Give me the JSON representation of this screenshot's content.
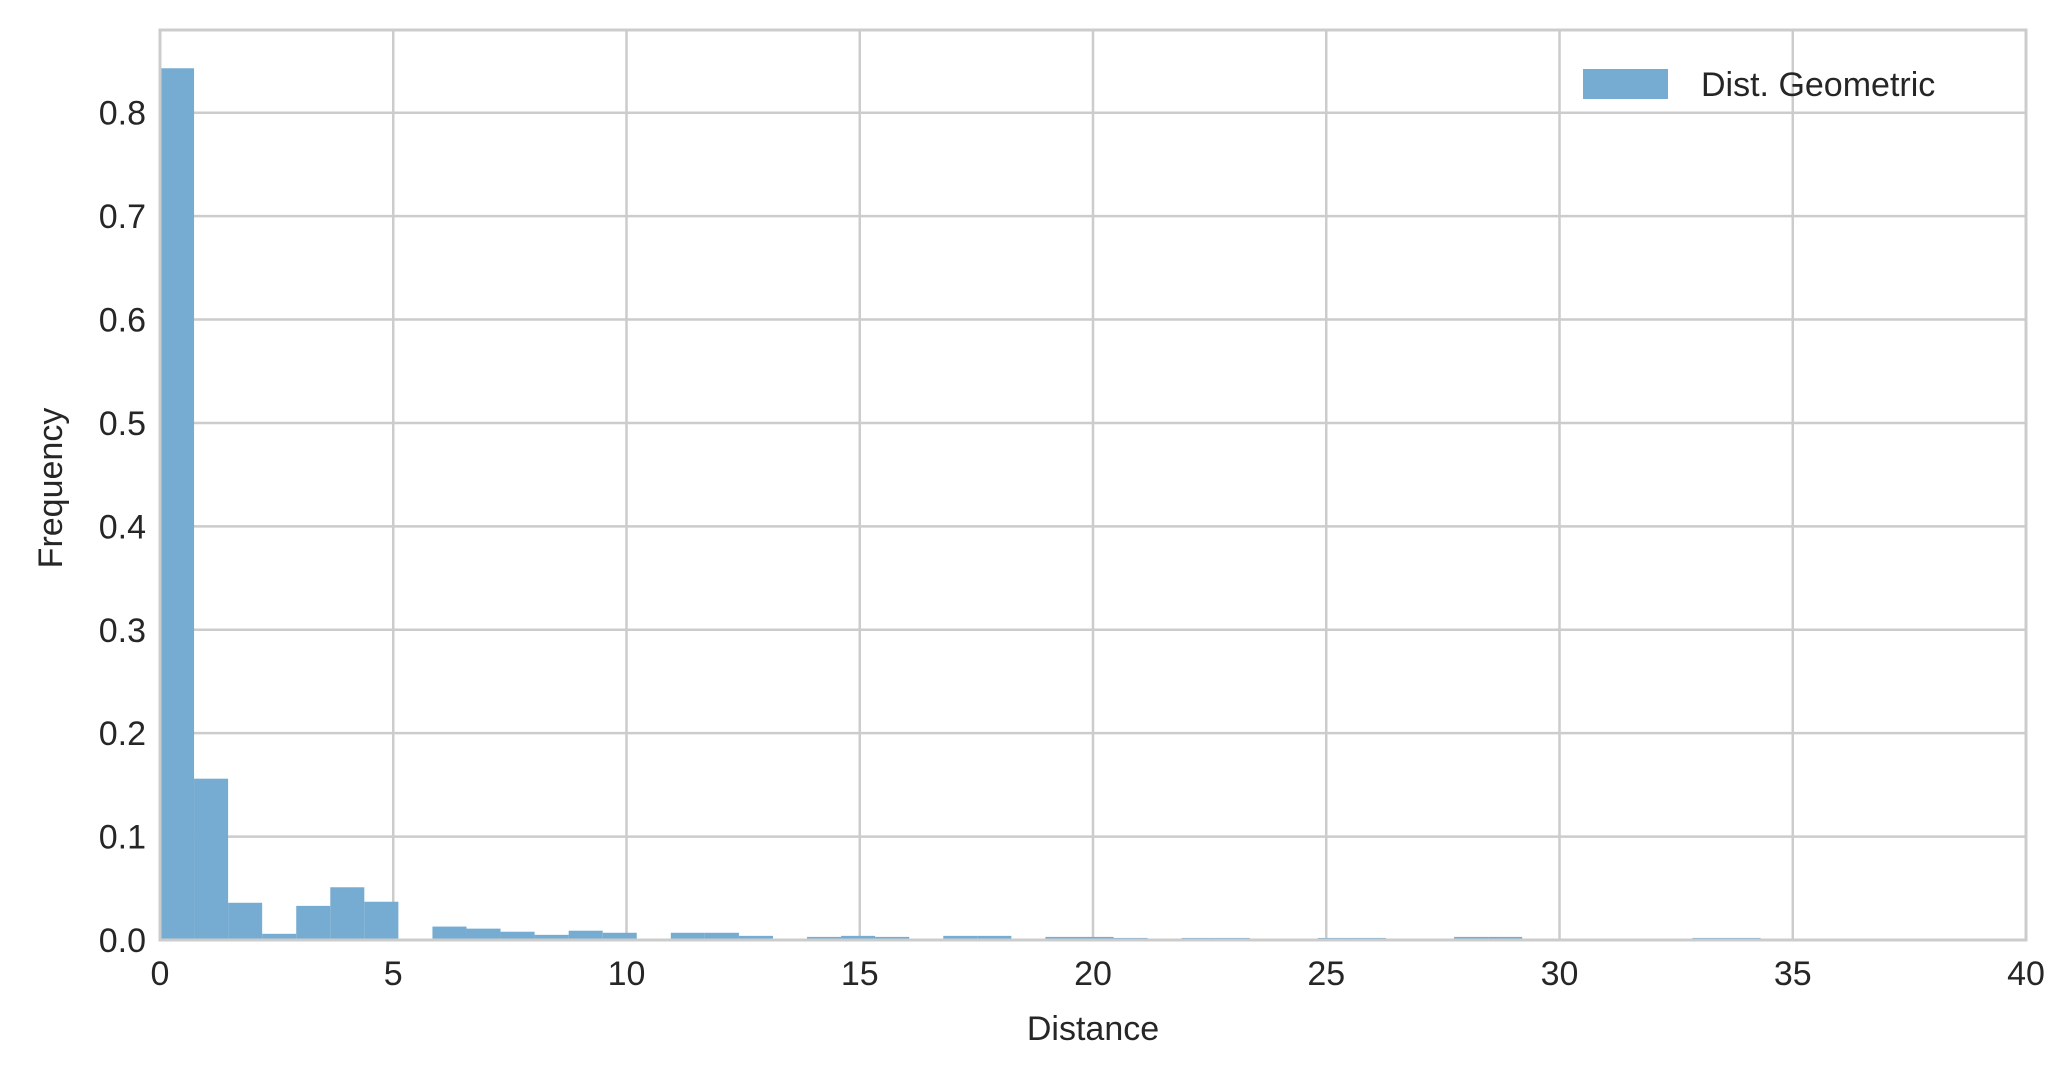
{
  "chart_data": {
    "type": "bar",
    "subtype": "histogram",
    "title": "",
    "xlabel": "Distance",
    "ylabel": "Frequency",
    "xlim": [
      0,
      40
    ],
    "ylim": [
      0,
      0.88
    ],
    "xticks": [
      0,
      5,
      10,
      15,
      20,
      25,
      30,
      35,
      40
    ],
    "yticks": [
      0.0,
      0.1,
      0.2,
      0.3,
      0.4,
      0.5,
      0.6,
      0.7,
      0.8
    ],
    "xtick_labels": [
      "0",
      "5",
      "10",
      "15",
      "20",
      "25",
      "30",
      "35",
      "40"
    ],
    "ytick_labels": [
      "0.0",
      "0.1",
      "0.2",
      "0.3",
      "0.4",
      "0.5",
      "0.6",
      "0.7",
      "0.8"
    ],
    "grid": true,
    "legend_position": "top-right",
    "series": [
      {
        "name": "Dist. Geometric",
        "color": "#77acd2",
        "bins": [
          {
            "x0": 0.0,
            "x1": 0.73,
            "value": 0.843
          },
          {
            "x0": 0.73,
            "x1": 1.46,
            "value": 0.156
          },
          {
            "x0": 1.46,
            "x1": 2.19,
            "value": 0.036
          },
          {
            "x0": 2.19,
            "x1": 2.92,
            "value": 0.006
          },
          {
            "x0": 2.92,
            "x1": 3.65,
            "value": 0.033
          },
          {
            "x0": 3.65,
            "x1": 4.38,
            "value": 0.051
          },
          {
            "x0": 4.38,
            "x1": 5.11,
            "value": 0.037
          },
          {
            "x0": 5.84,
            "x1": 6.57,
            "value": 0.013
          },
          {
            "x0": 6.57,
            "x1": 7.3,
            "value": 0.011
          },
          {
            "x0": 7.3,
            "x1": 8.03,
            "value": 0.008
          },
          {
            "x0": 8.03,
            "x1": 8.76,
            "value": 0.005
          },
          {
            "x0": 8.76,
            "x1": 9.49,
            "value": 0.009
          },
          {
            "x0": 9.49,
            "x1": 10.22,
            "value": 0.007
          },
          {
            "x0": 10.95,
            "x1": 11.68,
            "value": 0.007
          },
          {
            "x0": 11.68,
            "x1": 12.41,
            "value": 0.007
          },
          {
            "x0": 12.41,
            "x1": 13.14,
            "value": 0.004
          },
          {
            "x0": 13.87,
            "x1": 14.6,
            "value": 0.003
          },
          {
            "x0": 14.6,
            "x1": 15.33,
            "value": 0.004
          },
          {
            "x0": 15.33,
            "x1": 16.06,
            "value": 0.003
          },
          {
            "x0": 16.79,
            "x1": 17.52,
            "value": 0.004
          },
          {
            "x0": 17.52,
            "x1": 18.25,
            "value": 0.004
          },
          {
            "x0": 18.98,
            "x1": 19.71,
            "value": 0.003
          },
          {
            "x0": 19.71,
            "x1": 20.44,
            "value": 0.003
          },
          {
            "x0": 20.44,
            "x1": 21.17,
            "value": 0.002
          },
          {
            "x0": 21.9,
            "x1": 22.63,
            "value": 0.002
          },
          {
            "x0": 22.63,
            "x1": 23.36,
            "value": 0.002
          },
          {
            "x0": 24.82,
            "x1": 25.55,
            "value": 0.002
          },
          {
            "x0": 25.55,
            "x1": 26.28,
            "value": 0.002
          },
          {
            "x0": 27.74,
            "x1": 28.47,
            "value": 0.003
          },
          {
            "x0": 28.47,
            "x1": 29.2,
            "value": 0.003
          },
          {
            "x0": 32.85,
            "x1": 33.58,
            "value": 0.002
          },
          {
            "x0": 33.58,
            "x1": 34.31,
            "value": 0.002
          }
        ]
      }
    ]
  }
}
